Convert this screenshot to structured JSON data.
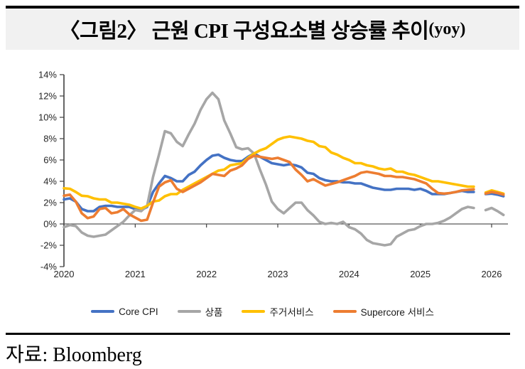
{
  "header": {
    "title": "〈그림2〉 근원 CPI 구성요소별 상승률 추이",
    "title_suffix": "(yoy)"
  },
  "footer": {
    "source": "자료: Bloomberg"
  },
  "chart_data": {
    "type": "line",
    "title": "근원 CPI 구성요소별 상승률 추이 (yoy)",
    "x_start": "2020-01",
    "x_interval": "monthly",
    "x_ticks": [
      "2020",
      "2021",
      "2022",
      "2023",
      "2024",
      "2025",
      "2026"
    ],
    "y_ticks": [
      14,
      12,
      10,
      8,
      6,
      4,
      2,
      0,
      -2,
      -4
    ],
    "y_unit": "%",
    "ylim": [
      -4,
      14
    ],
    "grid": false,
    "legend_position": "bottom",
    "forecast_start_index": 71,
    "series": [
      {
        "name": "Core CPI",
        "color": "#4472C4",
        "values": [
          2.3,
          2.4,
          2.1,
          1.4,
          1.2,
          1.2,
          1.6,
          1.7,
          1.7,
          1.6,
          1.6,
          1.6,
          1.4,
          1.3,
          1.6,
          3.0,
          3.8,
          4.5,
          4.3,
          4.0,
          4.0,
          4.6,
          4.9,
          5.5,
          6.0,
          6.4,
          6.5,
          6.2,
          6.0,
          5.9,
          5.9,
          6.3,
          6.6,
          6.3,
          6.0,
          5.7,
          5.6,
          5.5,
          5.6,
          5.5,
          5.3,
          4.8,
          4.7,
          4.3,
          4.1,
          4.0,
          4.0,
          3.9,
          3.9,
          3.8,
          3.8,
          3.6,
          3.4,
          3.3,
          3.2,
          3.2,
          3.3,
          3.3,
          3.3,
          3.2,
          3.3,
          3.1,
          2.8,
          2.8,
          2.8,
          2.9,
          3.0,
          3.1,
          3.0,
          3.0
        ],
        "forecast": [
          2.8,
          2.85,
          2.75,
          2.6
        ]
      },
      {
        "name": "상품",
        "color": "#A6A6A6",
        "values": [
          -0.3,
          -0.1,
          -0.2,
          -0.8,
          -1.1,
          -1.2,
          -1.1,
          -1.0,
          -0.6,
          -0.2,
          0.2,
          0.8,
          1.3,
          1.2,
          1.7,
          4.4,
          6.5,
          8.7,
          8.5,
          7.7,
          7.3,
          8.4,
          9.4,
          10.7,
          11.7,
          12.3,
          11.7,
          9.7,
          8.5,
          7.2,
          7.0,
          7.1,
          6.6,
          5.1,
          3.7,
          2.1,
          1.4,
          1.0,
          1.5,
          2.0,
          2.0,
          1.3,
          0.8,
          0.2,
          0.0,
          0.1,
          0.0,
          0.2,
          -0.3,
          -0.5,
          -0.9,
          -1.5,
          -1.8,
          -1.9,
          -2.0,
          -1.9,
          -1.2,
          -0.9,
          -0.6,
          -0.5,
          -0.2,
          0.0,
          0.0,
          0.1,
          0.3,
          0.6,
          1.0,
          1.4,
          1.6,
          1.5
        ],
        "forecast": [
          1.3,
          1.5,
          1.2,
          0.85
        ]
      },
      {
        "name": "주거서비스",
        "color": "#FFC000",
        "values": [
          3.35,
          3.3,
          3.0,
          2.65,
          2.6,
          2.4,
          2.3,
          2.3,
          2.0,
          2.0,
          1.9,
          1.8,
          1.6,
          1.45,
          1.7,
          2.1,
          2.2,
          2.6,
          2.8,
          2.8,
          3.2,
          3.5,
          3.8,
          4.1,
          4.4,
          4.7,
          5.0,
          5.1,
          5.5,
          5.6,
          5.7,
          6.2,
          6.6,
          6.9,
          7.1,
          7.5,
          7.9,
          8.1,
          8.2,
          8.1,
          8.0,
          7.8,
          7.7,
          7.3,
          7.2,
          6.7,
          6.5,
          6.2,
          6.0,
          5.7,
          5.7,
          5.5,
          5.4,
          5.2,
          5.1,
          5.2,
          4.9,
          4.9,
          4.7,
          4.6,
          4.4,
          4.2,
          4.0,
          4.0,
          3.9,
          3.8,
          3.7,
          3.6,
          3.5,
          3.5
        ],
        "forecast": [
          2.95,
          3.15,
          3.0,
          2.85
        ]
      },
      {
        "name": "Supercore 서비스",
        "color": "#ED7D31",
        "values": [
          2.65,
          2.75,
          2.1,
          1.0,
          0.55,
          0.7,
          1.4,
          1.5,
          1.0,
          1.1,
          1.4,
          0.9,
          0.6,
          0.3,
          0.4,
          2.0,
          3.5,
          3.9,
          4.1,
          3.3,
          3.0,
          3.3,
          3.6,
          3.9,
          4.3,
          4.7,
          4.6,
          4.5,
          5.0,
          5.2,
          5.5,
          6.1,
          6.4,
          6.3,
          6.2,
          6.1,
          6.2,
          6.0,
          5.8,
          5.1,
          4.6,
          4.0,
          4.2,
          3.9,
          3.6,
          3.75,
          3.9,
          4.1,
          4.3,
          4.5,
          4.8,
          4.9,
          4.8,
          4.7,
          4.5,
          4.5,
          4.4,
          4.4,
          4.3,
          4.2,
          4.0,
          3.8,
          3.3,
          2.9,
          2.85,
          2.9,
          3.0,
          3.15,
          3.2,
          3.25
        ],
        "forecast": [
          2.85,
          3.0,
          2.9,
          2.75
        ]
      }
    ]
  }
}
